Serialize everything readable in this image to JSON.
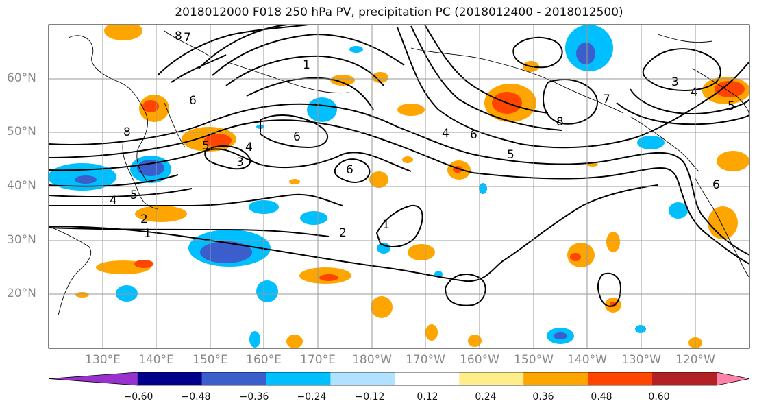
{
  "title": "2018012000 F018 250 hPa PV, precipitation PC (2018012400 - 2018012500)",
  "lat_labels": [
    "60°N",
    "50°N",
    "40°N",
    "30°N",
    "20°N"
  ],
  "lon_labels": [
    "130°E",
    "140°E",
    "150°E",
    "160°E",
    "170°E",
    "180°W",
    "170°W",
    "160°W",
    "150°W",
    "140°W",
    "130°W",
    "120°W"
  ],
  "colorbar": {
    "colors": [
      "#9932cc",
      "#00008b",
      "#3a5fcd",
      "#00bfff",
      "#b0e2ff",
      "#ffffff",
      "#ffec8b",
      "#ffa500",
      "#ff4500",
      "#b22222",
      "#ff82ab"
    ],
    "labels": [
      "−0.60",
      "−0.48",
      "−0.36",
      "−0.24",
      "−0.12",
      "0.12",
      "0.24",
      "0.36",
      "0.48",
      "0.60"
    ]
  },
  "contour_labels": [
    "1",
    "2",
    "3",
    "4",
    "5",
    "6",
    "7",
    "8"
  ],
  "colors": {
    "contour": "#000000",
    "grid": "#9a9a9a",
    "coast": "#000000"
  }
}
